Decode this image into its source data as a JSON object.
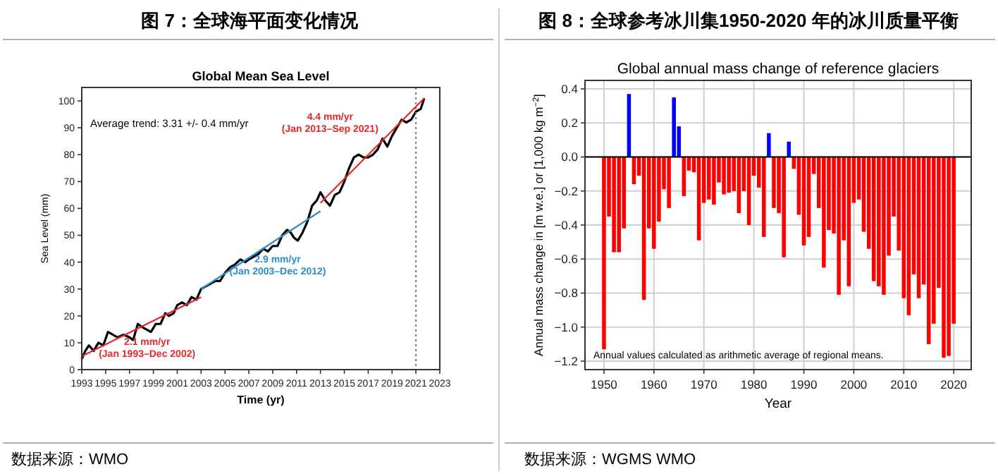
{
  "chart_data": [
    {
      "type": "line",
      "title": "图 7：全球海平面变化情况",
      "subtitle": "Global Mean Sea Level",
      "xlabel": "Time (yr)",
      "ylabel": "Sea Level (mm)",
      "xlim": [
        1993,
        2023
      ],
      "ylim": [
        0,
        105
      ],
      "xticks": [
        1993,
        1995,
        1997,
        1999,
        2001,
        2003,
        2005,
        2007,
        2009,
        2011,
        2013,
        2015,
        2017,
        2019,
        2021,
        2023
      ],
      "yticks": [
        0,
        10,
        20,
        30,
        40,
        50,
        60,
        70,
        80,
        90,
        100
      ],
      "series": [
        {
          "color": "#000000",
          "x": [
            1993.0,
            1993.3,
            1993.6,
            1994.0,
            1994.4,
            1994.8,
            1995.2,
            1995.6,
            1996.0,
            1996.5,
            1997.0,
            1997.3,
            1997.7,
            1998.0,
            1998.4,
            1998.8,
            1999.2,
            1999.6,
            2000.0,
            2000.3,
            2000.7,
            2001.0,
            2001.4,
            2001.8,
            2002.2,
            2002.6,
            2003.0,
            2003.4,
            2003.8,
            2004.2,
            2004.6,
            2005.0,
            2005.4,
            2005.8,
            2006.3,
            2006.7,
            2007.0,
            2007.4,
            2007.8,
            2008.2,
            2008.6,
            2009.0,
            2009.4,
            2009.8,
            2010.2,
            2010.5,
            2010.8,
            2011.1,
            2011.5,
            2011.9,
            2012.3,
            2012.7,
            2013.0,
            2013.4,
            2013.8,
            2014.2,
            2014.6,
            2015.0,
            2015.4,
            2015.8,
            2016.2,
            2016.6,
            2017.0,
            2017.4,
            2017.8,
            2018.2,
            2018.6,
            2019.0,
            2019.4,
            2019.8,
            2020.2,
            2020.6,
            2021.0,
            2021.4,
            2021.7
          ],
          "values": [
            4,
            7,
            9,
            7,
            10,
            9,
            14,
            13,
            12,
            13,
            12,
            11,
            17,
            16,
            15,
            14,
            17,
            17,
            21,
            20,
            21,
            24,
            25,
            24,
            27,
            26,
            30,
            31,
            32,
            33,
            33,
            36,
            38,
            39,
            41,
            40,
            41,
            42,
            43,
            45,
            44,
            46,
            46,
            50,
            52,
            51,
            49,
            48,
            51,
            55,
            61,
            63,
            66,
            63,
            61,
            65,
            66,
            70,
            75,
            79,
            80,
            79,
            79,
            80,
            82,
            86,
            83,
            87,
            90,
            93,
            92,
            93,
            96,
            97,
            101
          ]
        },
        {
          "name": "2.1 mm/yr\n(Jan 1993–Dec 2002)",
          "color": "#e8262a",
          "x": [
            1993,
            2003
          ],
          "values": [
            5,
            27
          ]
        },
        {
          "name": "2.9 mm/yr\n(Jan 2003–Dec 2012)",
          "color": "#2e8bc9",
          "x": [
            2003,
            2013
          ],
          "values": [
            30,
            59
          ]
        },
        {
          "name": "4.4 mm/yr\n(Jan 2013–Sep 2021)",
          "color": "#e8262a",
          "x": [
            2013,
            2021.7
          ],
          "values": [
            62,
            101
          ]
        }
      ],
      "ref_lines": [
        {
          "axis": "x",
          "value": 2021,
          "color": "#777777",
          "line_style": "dotted"
        }
      ],
      "annotations": [
        "Average trend: 3.31 +/- 0.4 mm/yr",
        "数据来源：WMO"
      ]
    },
    {
      "type": "bar",
      "title": "图 8：全球参考冰川集1950-2020 年的冰川质量平衡",
      "subtitle": "Global annual mass change of reference glaciers",
      "xlabel": "Year",
      "ylabel": "Annual mass change in [m w.e.] or [1,000 kg m$^{−2}$]",
      "xlim": [
        1946.2,
        2023.5
      ],
      "ylim": [
        -1.25,
        0.45
      ],
      "xticks": [
        1950,
        1960,
        1970,
        1980,
        1990,
        2000,
        2010,
        2020
      ],
      "yticks": [
        {
          "value": 0.4,
          "label": "0.4"
        },
        {
          "value": 0.2,
          "label": "0.2"
        },
        {
          "value": 0,
          "label": "0.0"
        },
        {
          "value": -0.2,
          "label": "−0.2"
        },
        {
          "value": -0.4,
          "label": "−0.4"
        },
        {
          "value": -0.6,
          "label": "−0.6"
        },
        {
          "value": -0.8,
          "label": "−0.8"
        },
        {
          "value": -1.0,
          "label": "−1.0"
        },
        {
          "value": -1.2,
          "label": "−1.2"
        }
      ],
      "grid": true,
      "x": [
        1950,
        1951,
        1952,
        1953,
        1954,
        1955,
        1956,
        1957,
        1958,
        1959,
        1960,
        1961,
        1962,
        1963,
        1964,
        1965,
        1966,
        1967,
        1968,
        1969,
        1970,
        1971,
        1972,
        1973,
        1974,
        1975,
        1976,
        1977,
        1978,
        1979,
        1980,
        1981,
        1982,
        1983,
        1984,
        1985,
        1986,
        1987,
        1988,
        1989,
        1990,
        1991,
        1992,
        1993,
        1994,
        1995,
        1996,
        1997,
        1998,
        1999,
        2000,
        2001,
        2002,
        2003,
        2004,
        2005,
        2006,
        2007,
        2008,
        2009,
        2010,
        2011,
        2012,
        2013,
        2014,
        2015,
        2016,
        2017,
        2018,
        2019,
        2020
      ],
      "values": [
        -1.13,
        -0.35,
        -0.56,
        -0.56,
        -0.42,
        0.37,
        -0.16,
        -0.11,
        -0.84,
        -0.42,
        -0.54,
        -0.38,
        -0.19,
        -0.3,
        0.35,
        0.18,
        -0.23,
        -0.08,
        -0.09,
        -0.49,
        -0.27,
        -0.25,
        -0.28,
        -0.15,
        -0.22,
        -0.21,
        -0.2,
        -0.33,
        -0.2,
        -0.4,
        -0.11,
        -0.18,
        -0.47,
        0.14,
        -0.3,
        -0.33,
        -0.59,
        0.09,
        -0.07,
        -0.34,
        -0.52,
        -0.47,
        -0.1,
        -0.3,
        -0.65,
        -0.43,
        -0.45,
        -0.81,
        -0.49,
        -0.76,
        -0.27,
        -0.25,
        -0.44,
        -0.54,
        -0.73,
        -0.76,
        -0.81,
        -0.58,
        -0.35,
        -0.55,
        -0.83,
        -0.93,
        -0.69,
        -0.83,
        -0.75,
        -1.1,
        -0.98,
        -0.77,
        -1.18,
        -1.17,
        -0.98
      ],
      "colors": [
        "#ff0000",
        "#ff0000",
        "#ff0000",
        "#ff0000",
        "#ff0000",
        "#0000ff",
        "#ff0000",
        "#ff0000",
        "#ff0000",
        "#ff0000",
        "#ff0000",
        "#ff0000",
        "#ff0000",
        "#ff0000",
        "#0000ff",
        "#0000ff",
        "#ff0000",
        "#ff0000",
        "#ff0000",
        "#ff0000",
        "#ff0000",
        "#ff0000",
        "#ff0000",
        "#ff0000",
        "#ff0000",
        "#ff0000",
        "#ff0000",
        "#ff0000",
        "#ff0000",
        "#ff0000",
        "#ff0000",
        "#ff0000",
        "#ff0000",
        "#0000ff",
        "#ff0000",
        "#ff0000",
        "#ff0000",
        "#0000ff",
        "#ff0000",
        "#ff0000",
        "#ff0000",
        "#ff0000",
        "#ff0000",
        "#ff0000",
        "#ff0000",
        "#ff0000",
        "#ff0000",
        "#ff0000",
        "#ff0000",
        "#ff0000",
        "#ff0000",
        "#ff0000",
        "#ff0000",
        "#ff0000",
        "#ff0000",
        "#ff0000",
        "#ff0000",
        "#ff0000",
        "#ff0000",
        "#ff0000",
        "#ff0000",
        "#ff0000",
        "#ff0000",
        "#ff0000",
        "#ff0000",
        "#ff0000",
        "#ff0000",
        "#ff0000",
        "#ff0000",
        "#ff0000",
        "#ff0000"
      ],
      "ref_lines": [
        {
          "axis": "y",
          "value": 0,
          "color": "#000000",
          "line_style": "solid"
        }
      ],
      "annotations": [
        "Annual values calculated as arithmetic average of regional means.",
        "数据来源：WGMS WMO"
      ]
    }
  ]
}
